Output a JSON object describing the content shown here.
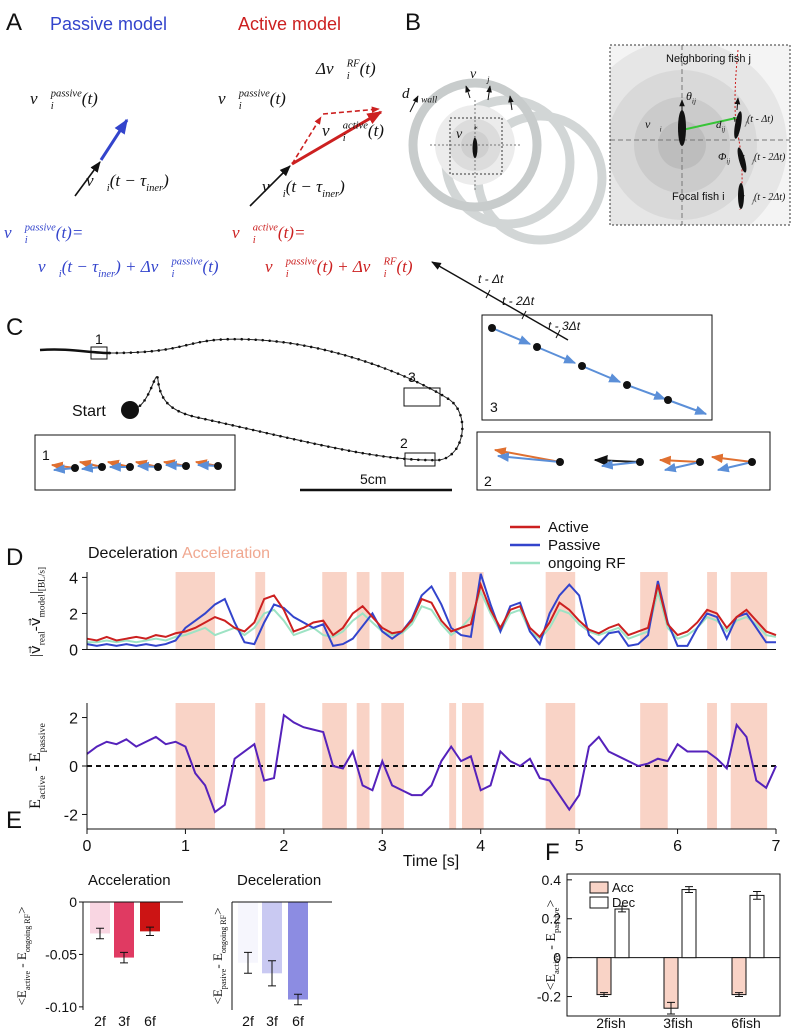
{
  "panel_labels": [
    "A",
    "B",
    "C",
    "D",
    "E",
    "F"
  ],
  "panel_a": {
    "passive_title": "Passive model",
    "active_title": "Active model",
    "passive_v": [
      {
        "t": "v⃗"
      },
      {
        "t": "i",
        "pos": "sub"
      },
      {
        "t": "passive",
        "pos": "sup"
      },
      {
        "t": "(t)"
      }
    ],
    "passive_prev": [
      {
        "t": "v⃗"
      },
      {
        "t": "i",
        "pos": "sub"
      },
      {
        "t": "(t − τ"
      },
      {
        "t": "iner",
        "pos": "sub"
      },
      {
        "t": ")"
      }
    ],
    "active_passive_v": [
      {
        "t": "v⃗"
      },
      {
        "t": "i",
        "pos": "sub"
      },
      {
        "t": "passive",
        "pos": "sup"
      },
      {
        "t": "(t)"
      }
    ],
    "active_delta": [
      {
        "t": "Δv⃗"
      },
      {
        "t": "i",
        "pos": "sub"
      },
      {
        "t": "RF",
        "pos": "sup"
      },
      {
        "t": "(t)"
      }
    ],
    "active_v": [
      {
        "t": "v⃗"
      },
      {
        "t": "i",
        "pos": "sub"
      },
      {
        "t": "active",
        "pos": "sup"
      },
      {
        "t": "(t)"
      }
    ],
    "active_prev": [
      {
        "t": "v⃗"
      },
      {
        "t": "i",
        "pos": "sub"
      },
      {
        "t": "(t − τ"
      },
      {
        "t": "iner",
        "pos": "sub"
      },
      {
        "t": ")"
      }
    ],
    "passive_eq_1": [
      {
        "t": "v⃗"
      },
      {
        "t": "i",
        "pos": "sub"
      },
      {
        "t": "passive",
        "pos": "sup"
      },
      {
        "t": "(t)="
      }
    ],
    "passive_eq_2": [
      {
        "t": "v⃗"
      },
      {
        "t": "i",
        "pos": "sub"
      },
      {
        "t": "(t − τ"
      },
      {
        "t": "iner",
        "pos": "sub"
      },
      {
        "t": ") + Δv⃗"
      },
      {
        "t": "i",
        "pos": "sub"
      },
      {
        "t": "passive",
        "pos": "sup"
      },
      {
        "t": "(t)"
      }
    ],
    "active_eq_1": [
      {
        "t": "v⃗"
      },
      {
        "t": "i",
        "pos": "sub"
      },
      {
        "t": "active",
        "pos": "sup"
      },
      {
        "t": "(t)="
      }
    ],
    "active_eq_2": [
      {
        "t": "v⃗"
      },
      {
        "t": "i",
        "pos": "sub"
      },
      {
        "t": "passive",
        "pos": "sup"
      },
      {
        "t": "(t) + Δv⃗"
      },
      {
        "t": "i",
        "pos": "sub"
      },
      {
        "t": "RF",
        "pos": "sup"
      },
      {
        "t": "(t)"
      }
    ]
  },
  "panel_b": {
    "d_wall": [
      {
        "t": "d⃗"
      },
      {
        "t": "wall",
        "pos": "sub"
      }
    ],
    "v_j": [
      {
        "t": "v⃗"
      },
      {
        "t": "j",
        "pos": "sub"
      }
    ],
    "v_i_star": [
      {
        "t": "v⃗"
      },
      {
        "t": "i",
        "pos": "sub"
      },
      {
        "t": "*",
        "pos": "sup"
      }
    ],
    "t1": "t - Δt",
    "t2": "t - 2Δt",
    "t3": "t - 3Δt",
    "neighbor": "Neighboring fish j",
    "focal": "Focal fish i",
    "theta": [
      {
        "t": "θ"
      },
      {
        "t": "ij",
        "pos": "sub"
      }
    ],
    "dist": [
      {
        "t": "d"
      },
      {
        "t": "ij",
        "pos": "sub"
      }
    ],
    "phi": [
      {
        "t": "Φ"
      },
      {
        "t": "ij",
        "pos": "sub"
      }
    ],
    "v_i": [
      {
        "t": "v⃗"
      },
      {
        "t": "i",
        "pos": "sub"
      }
    ],
    "v_j1": [
      {
        "t": "v⃗"
      },
      {
        "t": "j",
        "pos": "sub"
      },
      {
        "t": "(t - Δt)"
      }
    ],
    "v_j2": [
      {
        "t": "v⃗"
      },
      {
        "t": "j",
        "pos": "sub"
      },
      {
        "t": "(t - 2Δt)"
      }
    ],
    "v_j3": [
      {
        "t": "v⃗"
      },
      {
        "t": "j",
        "pos": "sub"
      },
      {
        "t": "(t - 2Δt)"
      }
    ]
  },
  "panel_c": {
    "box_labels": [
      "1",
      "2",
      "3"
    ],
    "start": "Start",
    "scale": "5cm",
    "inset_labels": [
      "1",
      "2",
      "3"
    ]
  },
  "chart_data": [
    {
      "type": "line",
      "annotations": [
        "Deceleration",
        "Acceleration"
      ],
      "ylabel": [
        {
          "t": "|"
        },
        {
          "t": "v⃗"
        },
        {
          "t": "real",
          "pos": "sub"
        },
        {
          "t": "-"
        },
        {
          "t": "v⃗"
        },
        {
          "t": "model",
          "pos": "sub"
        },
        {
          "t": "|"
        },
        {
          "t": "[BL/s]",
          "pos": "sub"
        }
      ],
      "xlim": [
        0,
        7
      ],
      "ylim": [
        0,
        4.3
      ],
      "yticks": [
        0,
        2,
        4
      ],
      "acc_intervals": [
        [
          0.9,
          1.3
        ],
        [
          1.71,
          1.81
        ],
        [
          2.39,
          2.64
        ],
        [
          2.74,
          2.87
        ],
        [
          2.99,
          3.22
        ],
        [
          3.68,
          3.75
        ],
        [
          3.81,
          4.03
        ],
        [
          4.66,
          4.96
        ],
        [
          5.62,
          5.9
        ],
        [
          6.3,
          6.4
        ],
        [
          6.54,
          6.91
        ]
      ],
      "acc_color": "#f9d3c6",
      "x": [
        0,
        0.1,
        0.2,
        0.3,
        0.4,
        0.5,
        0.6,
        0.7,
        0.8,
        0.9,
        1,
        1.1,
        1.2,
        1.3,
        1.4,
        1.5,
        1.6,
        1.7,
        1.8,
        1.9,
        2,
        2.1,
        2.2,
        2.3,
        2.4,
        2.5,
        2.6,
        2.7,
        2.8,
        2.9,
        3,
        3.1,
        3.2,
        3.3,
        3.4,
        3.5,
        3.6,
        3.7,
        3.8,
        3.9,
        4,
        4.1,
        4.2,
        4.3,
        4.4,
        4.5,
        4.6,
        4.7,
        4.8,
        4.9,
        5,
        5.1,
        5.2,
        5.3,
        5.4,
        5.5,
        5.6,
        5.7,
        5.8,
        5.9,
        6,
        6.1,
        6.2,
        6.3,
        6.4,
        6.5,
        6.6,
        6.7,
        6.8,
        6.9,
        7
      ],
      "series": [
        {
          "name": "Active",
          "color": "#cc2020",
          "values": [
            0.6,
            0.5,
            0.7,
            0.5,
            0.6,
            0.7,
            0.6,
            0.8,
            0.7,
            0.9,
            1.0,
            1.2,
            1.5,
            1.8,
            1.6,
            1.2,
            1.0,
            1.5,
            2.8,
            3.0,
            2.2,
            1.0,
            1.2,
            1.5,
            1.6,
            0.8,
            1.2,
            2.0,
            2.4,
            1.8,
            1.2,
            0.9,
            1.0,
            1.6,
            2.8,
            2.6,
            1.6,
            1.0,
            1.2,
            1.4,
            3.6,
            2.2,
            1.2,
            2.2,
            2.4,
            1.2,
            0.7,
            1.5,
            2.6,
            2.2,
            1.6,
            1.1,
            0.9,
            1.2,
            1.4,
            0.8,
            1.0,
            1.2,
            3.6,
            1.4,
            0.8,
            1.0,
            1.5,
            2.2,
            2.0,
            1.2,
            1.8,
            2.2,
            1.6,
            1.0,
            0.8
          ]
        },
        {
          "name": "Passive",
          "color": "#3344cc",
          "values": [
            0.3,
            0.2,
            0.3,
            0.2,
            0.3,
            0.2,
            0.3,
            0.2,
            0.3,
            0.5,
            1.2,
            1.6,
            2.0,
            2.5,
            2.8,
            1.5,
            0.4,
            0.3,
            1.5,
            2.5,
            2.3,
            1.8,
            1.5,
            1.2,
            1.4,
            0.2,
            0.3,
            0.6,
            1.3,
            2.0,
            1.0,
            0.6,
            1.0,
            1.7,
            3.0,
            3.5,
            2.5,
            1.2,
            0.8,
            0.7,
            4.2,
            2.5,
            1.0,
            2.4,
            2.6,
            1.0,
            0.3,
            2.0,
            3.0,
            3.6,
            3.0,
            0.8,
            0.3,
            0.9,
            1.0,
            0.2,
            0.3,
            0.8,
            3.8,
            1.5,
            0.2,
            0.2,
            1.2,
            2.0,
            1.8,
            0.6,
            1.8,
            2.0,
            1.2,
            0.4,
            0.4
          ]
        },
        {
          "name": "ongoing RF",
          "color": "#9de3c4",
          "values": [
            0.4,
            0.4,
            0.5,
            0.4,
            0.5,
            0.4,
            0.5,
            0.6,
            0.5,
            0.7,
            0.8,
            1.0,
            1.2,
            0.8,
            1.0,
            1.2,
            0.8,
            1.2,
            2.0,
            2.2,
            1.6,
            0.8,
            1.0,
            1.2,
            0.8,
            0.7,
            1.0,
            1.6,
            2.0,
            1.5,
            1.0,
            0.8,
            0.9,
            1.4,
            2.4,
            2.2,
            1.4,
            0.8,
            1.2,
            1.8,
            3.2,
            2.0,
            1.0,
            2.0,
            2.2,
            1.0,
            0.6,
            1.2,
            2.2,
            2.0,
            1.4,
            1.0,
            0.8,
            1.0,
            1.2,
            0.6,
            0.8,
            1.0,
            3.2,
            1.2,
            0.6,
            0.8,
            1.2,
            1.8,
            1.6,
            1.0,
            1.6,
            1.8,
            1.4,
            0.8,
            0.7
          ]
        }
      ]
    },
    {
      "type": "line",
      "ylabel": [
        {
          "t": "E"
        },
        {
          "t": "active",
          "pos": "sub"
        },
        {
          "t": " - E"
        },
        {
          "t": "passive",
          "pos": "sub"
        }
      ],
      "xlabel": "Time [s]",
      "xlim": [
        0,
        7
      ],
      "xticks": [
        0,
        1,
        2,
        3,
        4,
        5,
        6,
        7
      ],
      "ylim": [
        -2.6,
        2.6
      ],
      "yticks": [
        -2,
        0,
        2
      ],
      "reference_line": 0,
      "x": [
        0,
        0.1,
        0.2,
        0.3,
        0.4,
        0.5,
        0.6,
        0.7,
        0.8,
        0.9,
        1,
        1.1,
        1.2,
        1.3,
        1.4,
        1.5,
        1.6,
        1.7,
        1.8,
        1.9,
        2,
        2.1,
        2.2,
        2.3,
        2.4,
        2.5,
        2.6,
        2.7,
        2.8,
        2.9,
        3,
        3.1,
        3.2,
        3.3,
        3.4,
        3.5,
        3.6,
        3.7,
        3.8,
        3.9,
        4,
        4.1,
        4.2,
        4.3,
        4.4,
        4.5,
        4.6,
        4.7,
        4.8,
        4.9,
        5,
        5.1,
        5.2,
        5.3,
        5.4,
        5.5,
        5.6,
        5.7,
        5.8,
        5.9,
        6,
        6.1,
        6.2,
        6.3,
        6.4,
        6.5,
        6.6,
        6.7,
        6.8,
        6.9,
        7
      ],
      "color": "#5522bb",
      "values": [
        0.5,
        0.8,
        1.0,
        0.9,
        1.1,
        0.8,
        1.0,
        1.2,
        0.9,
        1.0,
        0.8,
        -0.3,
        -0.8,
        -1.9,
        -1.6,
        0.3,
        0.6,
        0.9,
        -0.6,
        -0.5,
        2.1,
        1.8,
        1.6,
        1.5,
        1.4,
        0.0,
        -0.1,
        0.6,
        -0.8,
        -1.0,
        0.2,
        -0.8,
        -1.0,
        -1.2,
        -1.2,
        -0.8,
        0.2,
        0.8,
        0.2,
        0.4,
        -1.0,
        -0.8,
        0.6,
        0.2,
        0.0,
        0.3,
        -0.5,
        -0.6,
        -1.2,
        -1.8,
        -1.2,
        0.8,
        1.2,
        0.6,
        0.4,
        0.2,
        0.0,
        0.1,
        0.3,
        0.2,
        0.9,
        0.6,
        0.6,
        0.6,
        0.3,
        -0.1,
        1.7,
        1.2,
        -0.6,
        -0.9,
        0.0
      ]
    },
    {
      "type": "bar",
      "title": "Acceleration",
      "ylabel": [
        {
          "t": "<E"
        },
        {
          "t": "active",
          "pos": "sub"
        },
        {
          "t": " - E"
        },
        {
          "t": "ongoing RF",
          "pos": "sub"
        },
        {
          "t": ">"
        }
      ],
      "categories": [
        "2f",
        "3f",
        "6f"
      ],
      "values": [
        -0.03,
        -0.053,
        -0.028
      ],
      "errors": [
        0.005,
        0.005,
        0.004
      ],
      "colors": [
        "#f9d6e2",
        "#e03a62",
        "#cc1414"
      ],
      "ylim": [
        -0.103,
        0
      ],
      "yticks": [
        0,
        -0.05,
        {
          "value": -0.1,
          "label": "-0.10"
        }
      ]
    },
    {
      "type": "bar",
      "title": "Deceleration",
      "ylabel": [
        {
          "t": "<E"
        },
        {
          "t": "pasive",
          "pos": "sub"
        },
        {
          "t": "- E"
        },
        {
          "t": "ongoing RF",
          "pos": "sub"
        },
        {
          "t": ">"
        }
      ],
      "categories": [
        "2f",
        "3f",
        "6f"
      ],
      "values": [
        -0.058,
        -0.068,
        -0.093
      ],
      "errors": [
        0.01,
        0.012,
        0.005
      ],
      "colors": [
        "#f6f6fd",
        "#c9c9f2",
        "#8c8ce2"
      ],
      "ylim": [
        -0.103,
        0
      ]
    },
    {
      "type": "grouped_bar",
      "ylabel": [
        {
          "t": "<E"
        },
        {
          "t": "active",
          "pos": "sub"
        },
        {
          "t": " - E"
        },
        {
          "t": "passive",
          "pos": "sub"
        },
        {
          "t": ">"
        }
      ],
      "categories": [
        "2fish",
        "3fish",
        "6fish"
      ],
      "series": [
        {
          "name": "Acc",
          "color": "#f9d3c6",
          "values": [
            -0.19,
            -0.26,
            -0.19
          ],
          "errors": [
            0.01,
            0.03,
            0.01
          ]
        },
        {
          "name": "Dec",
          "color": "#ffffff",
          "values": [
            0.25,
            0.35,
            0.32
          ],
          "errors": [
            0.015,
            0.015,
            0.02
          ]
        }
      ],
      "ylim": [
        -0.3,
        0.43
      ],
      "yticks": [
        -0.2,
        0,
        0.2,
        0.4
      ]
    }
  ]
}
